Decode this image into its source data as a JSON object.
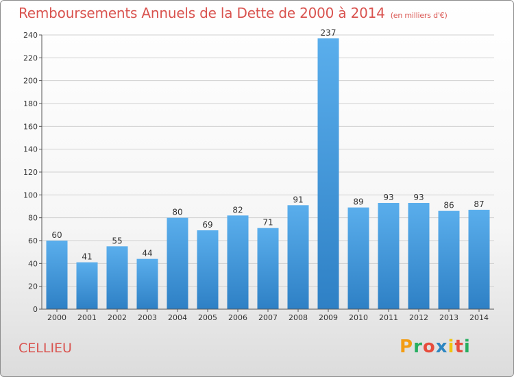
{
  "header": {
    "title": "Remboursements Annuels de la Dette de 2000 à 2014",
    "unit": "(en milliers d'€)"
  },
  "footer": {
    "commune": "CELLIEU",
    "logo_text": "Proxiti"
  },
  "colors": {
    "title": "#d9534f",
    "bar_top": "#5aaeec",
    "bar_bottom": "#2e80c5",
    "logo_letters": [
      "#f39c12",
      "#27ae60",
      "#e74c3c",
      "#2e86c1",
      "#f1c40f",
      "#e74c3c",
      "#27ae60"
    ]
  },
  "chart_data": {
    "type": "bar",
    "categories": [
      "2000",
      "2001",
      "2002",
      "2003",
      "2004",
      "2005",
      "2006",
      "2007",
      "2008",
      "2009",
      "2010",
      "2011",
      "2012",
      "2013",
      "2014"
    ],
    "values": [
      60,
      41,
      55,
      44,
      80,
      69,
      82,
      71,
      91,
      237,
      89,
      93,
      93,
      86,
      87
    ],
    "ylim": [
      0,
      240
    ],
    "yticks": [
      0,
      20,
      40,
      60,
      80,
      100,
      120,
      140,
      160,
      180,
      200,
      220,
      240
    ],
    "grid": true
  }
}
